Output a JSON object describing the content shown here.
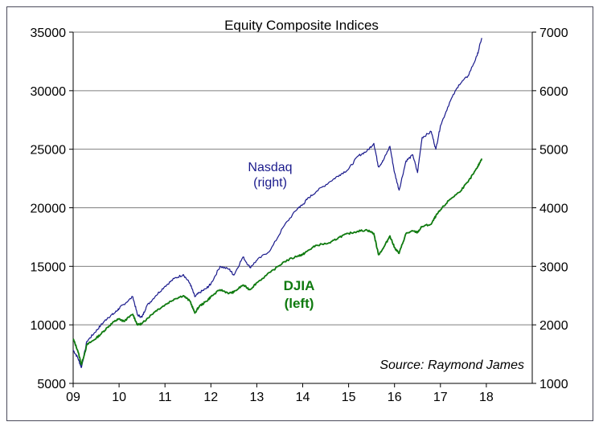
{
  "chart_data": {
    "type": "line",
    "title": "Equity Composite Indices",
    "xlabel": "",
    "ylabel_left": "",
    "ylabel_right": "",
    "x_ticks": [
      "09",
      "10",
      "11",
      "12",
      "13",
      "14",
      "15",
      "16",
      "17",
      "18"
    ],
    "x_range": [
      2009.0,
      2019.0
    ],
    "ylim_left": [
      5000,
      35000
    ],
    "ylim_right": [
      1000,
      7000
    ],
    "y_ticks_left": [
      "5000",
      "10000",
      "15000",
      "20000",
      "25000",
      "30000",
      "35000"
    ],
    "y_ticks_right": [
      "1000",
      "2000",
      "3000",
      "4000",
      "5000",
      "6000",
      "7000"
    ],
    "grid": "horizontal",
    "annotations": {
      "nasdaq_line1": "Nasdaq",
      "nasdaq_line2": "(right)",
      "djia_line1": "DJIA",
      "djia_line2": "(left)",
      "source": "Source: Raymond James"
    },
    "series": [
      {
        "name": "Nasdaq",
        "axis": "right",
        "color": "#1a1a8c",
        "x": [
          2009.0,
          2009.1,
          2009.18,
          2009.3,
          2009.45,
          2009.6,
          2009.75,
          2009.9,
          2010.0,
          2010.1,
          2010.3,
          2010.4,
          2010.5,
          2010.6,
          2010.8,
          2011.0,
          2011.2,
          2011.4,
          2011.55,
          2011.65,
          2011.75,
          2011.9,
          2012.0,
          2012.2,
          2012.4,
          2012.5,
          2012.7,
          2012.85,
          2013.0,
          2013.3,
          2013.6,
          2013.9,
          2014.0,
          2014.1,
          2014.3,
          2014.6,
          2014.8,
          2015.0,
          2015.2,
          2015.4,
          2015.55,
          2015.65,
          2015.75,
          2015.9,
          2016.0,
          2016.1,
          2016.25,
          2016.4,
          2016.5,
          2016.6,
          2016.8,
          2016.9,
          2017.0,
          2017.2,
          2017.4,
          2017.6,
          2017.8,
          2017.9
        ],
        "values": [
          1570,
          1440,
          1270,
          1720,
          1850,
          1990,
          2120,
          2200,
          2280,
          2350,
          2480,
          2170,
          2130,
          2320,
          2500,
          2660,
          2790,
          2860,
          2700,
          2480,
          2550,
          2620,
          2700,
          3000,
          2950,
          2850,
          3160,
          2980,
          3100,
          3280,
          3700,
          4000,
          4050,
          4150,
          4280,
          4450,
          4560,
          4660,
          4880,
          4970,
          5100,
          4700,
          4800,
          5050,
          4600,
          4300,
          4800,
          4900,
          4600,
          5200,
          5300,
          5000,
          5400,
          5800,
          6100,
          6250,
          6600,
          6900
        ]
      },
      {
        "name": "DJIA",
        "axis": "left",
        "color": "#0f7a0f",
        "x": [
          2009.0,
          2009.1,
          2009.18,
          2009.3,
          2009.45,
          2009.6,
          2009.75,
          2009.9,
          2010.0,
          2010.1,
          2010.3,
          2010.4,
          2010.5,
          2010.6,
          2010.8,
          2011.0,
          2011.2,
          2011.4,
          2011.55,
          2011.65,
          2011.75,
          2011.9,
          2012.0,
          2012.2,
          2012.4,
          2012.5,
          2012.7,
          2012.85,
          2013.0,
          2013.3,
          2013.6,
          2013.9,
          2014.0,
          2014.1,
          2014.3,
          2014.6,
          2014.8,
          2015.0,
          2015.2,
          2015.4,
          2015.55,
          2015.65,
          2015.75,
          2015.9,
          2016.0,
          2016.1,
          2016.25,
          2016.4,
          2016.5,
          2016.6,
          2016.8,
          2016.9,
          2017.0,
          2017.2,
          2017.4,
          2017.6,
          2017.8,
          2017.9
        ],
        "values": [
          8800,
          7800,
          6600,
          8300,
          8700,
          9200,
          9800,
          10300,
          10500,
          10300,
          10900,
          10000,
          10100,
          10500,
          11200,
          11700,
          12200,
          12500,
          12000,
          11000,
          11600,
          12000,
          12400,
          13000,
          12700,
          12800,
          13400,
          13000,
          13600,
          14500,
          15400,
          15900,
          16000,
          16300,
          16800,
          17000,
          17500,
          17800,
          18000,
          18100,
          17800,
          16000,
          16500,
          17600,
          16600,
          16100,
          17800,
          18000,
          17900,
          18400,
          18600,
          19300,
          19800,
          20700,
          21300,
          22200,
          23400,
          24200
        ]
      }
    ]
  }
}
